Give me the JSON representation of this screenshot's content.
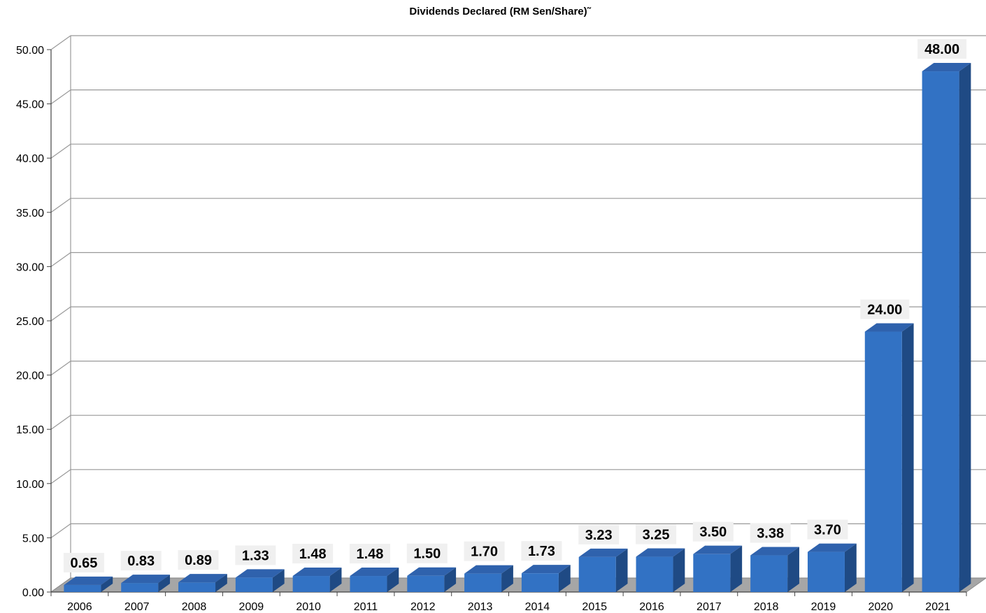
{
  "chart_data": {
    "type": "bar",
    "title": "Dividends Declared (RM Sen/Share)˜",
    "xlabel": "",
    "ylabel": "",
    "categories": [
      "2006",
      "2007",
      "2008",
      "2009",
      "2010",
      "2011",
      "2012",
      "2013",
      "2014",
      "2015",
      "2016",
      "2017",
      "2018",
      "2019",
      "2020",
      "2021"
    ],
    "values": [
      0.65,
      0.83,
      0.89,
      1.33,
      1.48,
      1.48,
      1.5,
      1.7,
      1.73,
      3.23,
      3.25,
      3.5,
      3.38,
      3.7,
      24.0,
      48.0
    ],
    "value_labels": [
      "0.65",
      "0.83",
      "0.89",
      "1.33",
      "1.48",
      "1.48",
      "1.50",
      "1.70",
      "1.73",
      "3.23",
      "3.25",
      "3.50",
      "3.38",
      "3.70",
      "24.00",
      "48.00"
    ],
    "y_ticks": [
      "0.00",
      "5.00",
      "10.00",
      "15.00",
      "20.00",
      "25.00",
      "30.00",
      "35.00",
      "40.00",
      "45.00",
      "50.00"
    ],
    "ylim": [
      0,
      50
    ],
    "grid": true,
    "style": "3d-bar",
    "colors": {
      "bar_front": "#3272c4",
      "bar_side": "#1f4a84",
      "bar_top": "#2f62ad",
      "floor": "#a6a6a6",
      "grid": "#999999",
      "label_bg": "#f0f0f0"
    }
  }
}
